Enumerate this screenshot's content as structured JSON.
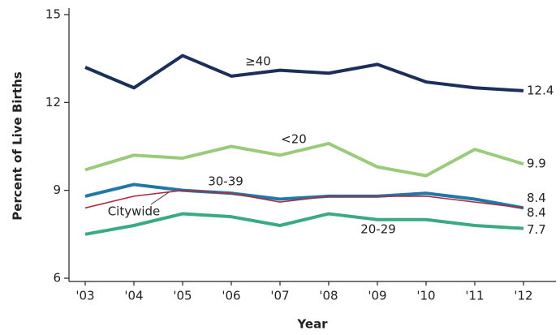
{
  "chart_data": {
    "type": "line",
    "x_label": "Year",
    "y_label": "Percent of Live Births",
    "categories": [
      "'03",
      "'04",
      "'05",
      "'06",
      "'07",
      "'08",
      "'09",
      "'10",
      "'11",
      "'12"
    ],
    "series": [
      {
        "name": "≥40",
        "color": "#1b2f5b",
        "values": [
          13.2,
          12.5,
          13.6,
          12.9,
          13.1,
          13.0,
          13.3,
          12.7,
          12.5,
          12.4
        ]
      },
      {
        "name": "<20",
        "color": "#99cc7a",
        "values": [
          9.7,
          10.2,
          10.1,
          10.5,
          10.2,
          10.6,
          9.8,
          9.5,
          10.4,
          9.9
        ]
      },
      {
        "name": "30-39",
        "color": "#1f78a8",
        "values": [
          8.8,
          9.2,
          9.0,
          8.9,
          8.7,
          8.8,
          8.8,
          8.9,
          8.7,
          8.4
        ]
      },
      {
        "name": "Citywide",
        "color": "#b2283a",
        "values": [
          8.4,
          8.8,
          9.0,
          8.9,
          8.6,
          8.8,
          8.8,
          8.8,
          8.6,
          8.4
        ]
      },
      {
        "name": "20-29",
        "color": "#3aaa80",
        "values": [
          7.5,
          7.8,
          8.2,
          8.1,
          7.8,
          8.2,
          8.0,
          8.0,
          7.8,
          7.7
        ]
      }
    ],
    "ylim": [
      6,
      15
    ],
    "yticks": [
      6,
      9,
      12,
      15
    ]
  }
}
